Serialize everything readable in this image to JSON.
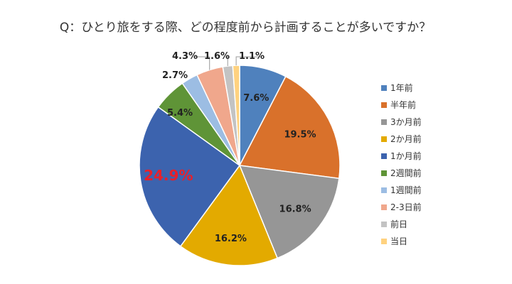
{
  "chart_data": {
    "type": "pie",
    "title": "Q：ひとり旅をする際、どの程度前から計画することが多いですか？",
    "legend_position": "right",
    "slices": [
      {
        "label": "1年前",
        "value": 7.6,
        "display": "7.6%",
        "color": "#4f81bd"
      },
      {
        "label": "半年前",
        "value": 19.5,
        "display": "19.5%",
        "color": "#d9712b"
      },
      {
        "label": "3か月前",
        "value": 16.8,
        "display": "16.8%",
        "color": "#969696"
      },
      {
        "label": "2か月前",
        "value": 16.2,
        "display": "16.2%",
        "color": "#e3aa00"
      },
      {
        "label": "1か月前",
        "value": 24.9,
        "display": "24.9%",
        "color": "#3c63ae",
        "highlight": true
      },
      {
        "label": "2週間前",
        "value": 5.4,
        "display": "5.4%",
        "color": "#5f9437"
      },
      {
        "label": "1週間前",
        "value": 2.7,
        "display": "2.7%",
        "color": "#9cbde3"
      },
      {
        "label": "2-3日前",
        "value": 4.3,
        "display": "4.3%",
        "color": "#f0a78c"
      },
      {
        "label": "前日",
        "value": 1.6,
        "display": "1.6%",
        "color": "#c3c3c3"
      },
      {
        "label": "当日",
        "value": 1.1,
        "display": "1.1%",
        "color": "#ffd27f"
      }
    ],
    "highlight_color": "#e8202a"
  }
}
